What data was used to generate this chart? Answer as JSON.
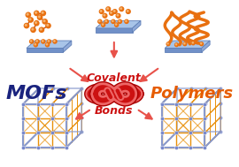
{
  "bg_color": "#ffffff",
  "center_text_covalent": "Covalent",
  "center_text_bonds": "Bonds",
  "mofs_text": "MOFs",
  "polymers_text": "Polymers",
  "knot_color": "#cc1111",
  "knot_highlight": "#ee6666",
  "mofs_color": "#1a237e",
  "polymers_color": "#e65c00",
  "covalent_color": "#cc1111",
  "bonds_color": "#cc1111",
  "arrow_color": "#e8524a",
  "mof_frame_color": "#8899cc",
  "mof_node_color": "#7788cc",
  "mof_linker_color": "#e8900a",
  "particle_color": "#e87010",
  "particle_dark": "#c05010",
  "polymer_color": "#e87010",
  "surface_color_top": "#a8c4e8",
  "surface_color_bot": "#7090c8",
  "surface_edge": "#6080b8"
}
